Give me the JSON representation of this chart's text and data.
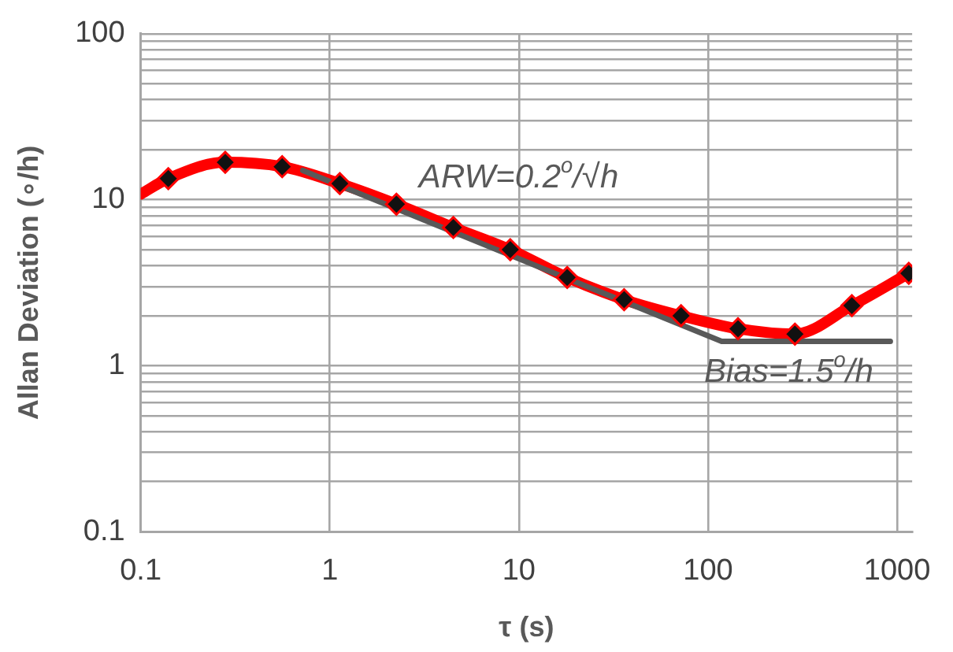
{
  "chart_data": {
    "type": "line",
    "xlabel": "τ (s)",
    "ylabel": "Allan Deviation (∘/h)",
    "log": "xy",
    "grid": true,
    "legend": false,
    "xlim": [
      0.1,
      1200
    ],
    "xticks": [
      0.1,
      1,
      10,
      100,
      1000
    ],
    "ylim": [
      0.1,
      100
    ],
    "yticks": [
      0.1,
      {
        "value": 0.2,
        "label": null
      },
      {
        "value": 0.3,
        "label": null
      },
      {
        "value": 0.4,
        "label": null
      },
      {
        "value": 0.5,
        "label": null
      },
      {
        "value": 0.6,
        "label": null
      },
      {
        "value": 0.7,
        "label": null
      },
      {
        "value": 0.8,
        "label": null
      },
      {
        "value": 0.9,
        "label": null
      },
      1,
      {
        "value": 2,
        "label": null
      },
      {
        "value": 3,
        "label": null
      },
      {
        "value": 4,
        "label": null
      },
      {
        "value": 5,
        "label": null
      },
      {
        "value": 6,
        "label": null
      },
      {
        "value": 7,
        "label": null
      },
      {
        "value": 8,
        "label": null
      },
      {
        "value": 9,
        "label": null
      },
      10,
      {
        "value": 20,
        "label": null
      },
      {
        "value": 30,
        "label": null
      },
      {
        "value": 40,
        "label": null
      },
      {
        "value": 50,
        "label": null
      },
      {
        "value": 60,
        "label": null
      },
      {
        "value": 70,
        "label": null
      },
      {
        "value": 80,
        "label": null
      },
      {
        "value": 90,
        "label": null
      },
      100
    ],
    "series": [
      {
        "color": "#ff0000",
        "marker": "none",
        "x": [
          0.1,
          0.14,
          0.28,
          0.56,
          1.13,
          2.25,
          4.5,
          9,
          18,
          36,
          72,
          144,
          288,
          576,
          1152
        ],
        "values": [
          10.8,
          13.4,
          16.8,
          15.8,
          12.5,
          9.4,
          6.8,
          5.0,
          3.4,
          2.5,
          2.0,
          1.67,
          1.55,
          2.3,
          3.6
        ]
      },
      {
        "type": "scatter",
        "color": "#111111",
        "marker": "diamond",
        "x": [
          0.14,
          0.28,
          0.56,
          1.13,
          2.25,
          4.5,
          9,
          18,
          36,
          72,
          144,
          288,
          576,
          1152
        ],
        "values": [
          13.4,
          16.8,
          15.8,
          12.5,
          9.4,
          6.8,
          5.0,
          3.4,
          2.5,
          2.0,
          1.67,
          1.55,
          2.3,
          3.6
        ]
      },
      {
        "color": "#595959",
        "marker": "none",
        "x": [
          0.72,
          118,
          920
        ],
        "values": [
          15,
          1.4,
          1.4
        ]
      }
    ],
    "annotations": [
      "ARW=0.2$^{o}$/√h",
      "Bias=1.5$^{o}$/h"
    ]
  }
}
